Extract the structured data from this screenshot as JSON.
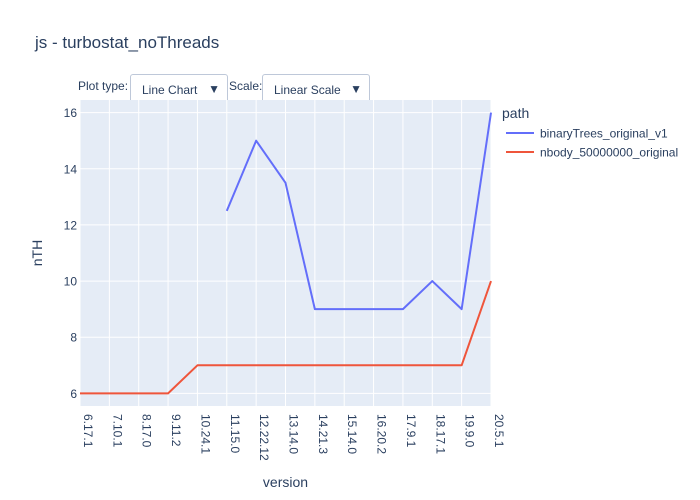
{
  "title": "js - turbostat_noThreads",
  "controls": {
    "plot_type_label": "Plot type:",
    "plot_type_value": "Line Chart",
    "scale_label": "Scale:",
    "scale_value": "Linear Scale"
  },
  "legend": {
    "title": "path"
  },
  "colors": {
    "plot_bg": "#e5ecf6",
    "grid": "#ffffff",
    "text": "#2a3f5f",
    "series_1": "#636efa",
    "series_2": "#ef553b"
  },
  "chart_data": {
    "type": "line",
    "title": "js - turbostat_noThreads",
    "xlabel": "version",
    "ylabel": "nTH",
    "categories": [
      "6.17.1",
      "7.10.1",
      "8.17.0",
      "9.11.2",
      "10.24.1",
      "11.15.0",
      "12.22.12",
      "13.14.0",
      "14.21.3",
      "15.14.0",
      "16.20.2",
      "17.9.1",
      "18.17.1",
      "19.9.0",
      "20.5.1"
    ],
    "y_ticks": [
      6,
      8,
      10,
      12,
      14,
      16
    ],
    "ylim": [
      5.55,
      16.45
    ],
    "grid": true,
    "legend_position": "right",
    "series": [
      {
        "name": "binaryTrees_original_v1",
        "color": "#636efa",
        "values": [
          null,
          null,
          null,
          null,
          null,
          12.5,
          15,
          13.5,
          9,
          9,
          9,
          9,
          10,
          9,
          16
        ]
      },
      {
        "name": "nbody_50000000_original",
        "color": "#ef553b",
        "values": [
          6,
          6,
          6,
          6,
          7,
          7,
          7,
          7,
          7,
          7,
          7,
          7,
          7,
          7,
          10
        ]
      }
    ]
  }
}
